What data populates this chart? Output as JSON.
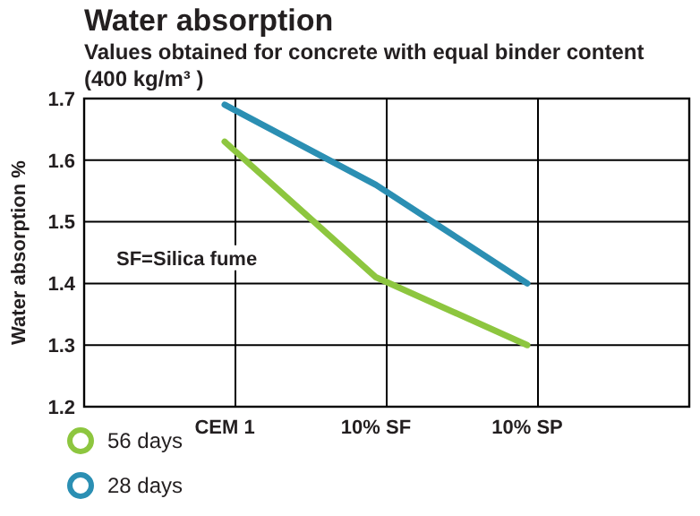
{
  "chart_data": {
    "type": "line",
    "title": "Water absorption",
    "subtitle": "Values obtained for concrete with equal binder content (400 kg/m³ )",
    "ylabel": "Water absorption %",
    "categories": [
      "CEM 1",
      "10% SF",
      "10% SP"
    ],
    "series": [
      {
        "name": "56 days",
        "color": "#8dc63f",
        "values": [
          1.63,
          1.41,
          1.3
        ]
      },
      {
        "name": "28 days",
        "color": "#2b8fb3",
        "values": [
          1.69,
          1.56,
          1.4
        ]
      }
    ],
    "ylim": [
      1.2,
      1.7
    ],
    "yticks": [
      1.2,
      1.3,
      1.4,
      1.5,
      1.6,
      1.7
    ],
    "grid": true,
    "legend": "bottom left",
    "annotations": [
      "SF=Silica fume"
    ]
  }
}
